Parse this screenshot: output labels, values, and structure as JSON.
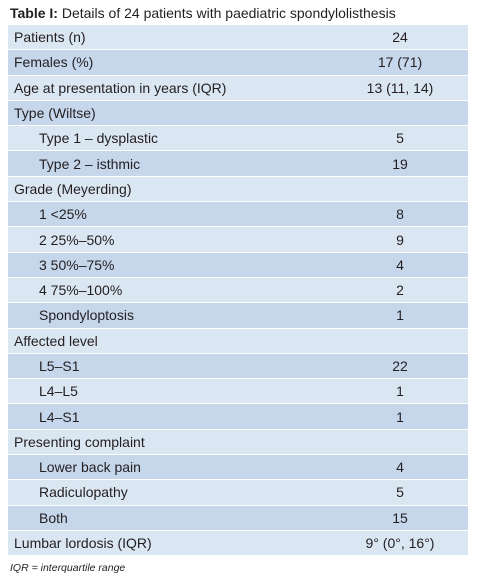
{
  "caption": {
    "prefix": "Table I:",
    "text": " Details of 24 patients with paediatric spondylolisthesis"
  },
  "rows": [
    {
      "label": "Patients (n)",
      "value": "24",
      "indent": false
    },
    {
      "label": "Females (%)",
      "value": "17 (71)",
      "indent": false
    },
    {
      "label": "Age at presentation in years (IQR)",
      "value": "13 (11, 14)",
      "indent": false
    },
    {
      "label": "Type (Wiltse)",
      "value": "",
      "indent": false
    },
    {
      "label": "Type 1 – dysplastic",
      "value": "5",
      "indent": true
    },
    {
      "label": "Type 2 – isthmic",
      "value": "19",
      "indent": true
    },
    {
      "label": "Grade (Meyerding)",
      "value": "",
      "indent": false
    },
    {
      "label": "1  <25%",
      "value": "8",
      "indent": true
    },
    {
      "label": "2  25%–50%",
      "value": "9",
      "indent": true
    },
    {
      "label": "3  50%–75%",
      "value": "4",
      "indent": true
    },
    {
      "label": "4  75%–100%",
      "value": "2",
      "indent": true
    },
    {
      "label": "Spondyloptosis",
      "value": "1",
      "indent": true
    },
    {
      "label": "Affected level",
      "value": "",
      "indent": false
    },
    {
      "label": "L5–S1",
      "value": "22",
      "indent": true
    },
    {
      "label": "L4–L5",
      "value": "1",
      "indent": true
    },
    {
      "label": "L4–S1",
      "value": "1",
      "indent": true
    },
    {
      "label": "Presenting complaint",
      "value": "",
      "indent": false
    },
    {
      "label": "Lower back pain",
      "value": "4",
      "indent": true
    },
    {
      "label": "Radiculopathy",
      "value": "5",
      "indent": true
    },
    {
      "label": "Both",
      "value": "15",
      "indent": true
    },
    {
      "label": "Lumbar lordosis (IQR)",
      "value": "9° (0°, 16°)",
      "indent": false
    }
  ],
  "footnote": "IQR = interquartile range",
  "colors": {
    "row_light": "#dbe6f3",
    "row_dark": "#c6d7ec",
    "text": "#231f20"
  }
}
